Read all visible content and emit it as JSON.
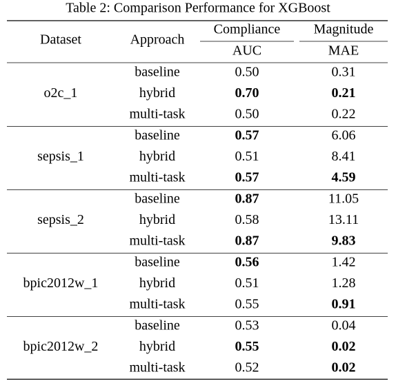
{
  "title": "Table 2: Comparison Performance for XGBoost",
  "header": {
    "dataset": "Dataset",
    "approach": "Approach",
    "compliance": "Compliance",
    "auc": "AUC",
    "magnitude": "Magnitude",
    "mae": "MAE"
  },
  "groups": [
    {
      "dataset": "o2c_1",
      "rows": [
        {
          "approach": "baseline",
          "auc": "0.50",
          "mae": "0.31",
          "auc_bold": false,
          "mae_bold": false
        },
        {
          "approach": "hybrid",
          "auc": "0.70",
          "mae": "0.21",
          "auc_bold": true,
          "mae_bold": true
        },
        {
          "approach": "multi-task",
          "auc": "0.50",
          "mae": "0.22",
          "auc_bold": false,
          "mae_bold": false
        }
      ]
    },
    {
      "dataset": "sepsis_1",
      "rows": [
        {
          "approach": "baseline",
          "auc": "0.57",
          "mae": "6.06",
          "auc_bold": true,
          "mae_bold": false
        },
        {
          "approach": "hybrid",
          "auc": "0.51",
          "mae": "8.41",
          "auc_bold": false,
          "mae_bold": false
        },
        {
          "approach": "multi-task",
          "auc": "0.57",
          "mae": "4.59",
          "auc_bold": true,
          "mae_bold": true
        }
      ]
    },
    {
      "dataset": "sepsis_2",
      "rows": [
        {
          "approach": "baseline",
          "auc": "0.87",
          "mae": "11.05",
          "auc_bold": true,
          "mae_bold": false
        },
        {
          "approach": "hybrid",
          "auc": "0.58",
          "mae": "13.11",
          "auc_bold": false,
          "mae_bold": false
        },
        {
          "approach": "multi-task",
          "auc": "0.87",
          "mae": "9.83",
          "auc_bold": true,
          "mae_bold": true
        }
      ]
    },
    {
      "dataset": "bpic2012w_1",
      "rows": [
        {
          "approach": "baseline",
          "auc": "0.56",
          "mae": "1.42",
          "auc_bold": true,
          "mae_bold": false
        },
        {
          "approach": "hybrid",
          "auc": "0.51",
          "mae": "1.28",
          "auc_bold": false,
          "mae_bold": false
        },
        {
          "approach": "multi-task",
          "auc": "0.55",
          "mae": "0.91",
          "auc_bold": false,
          "mae_bold": true
        }
      ]
    },
    {
      "dataset": "bpic2012w_2",
      "rows": [
        {
          "approach": "baseline",
          "auc": "0.53",
          "mae": "0.04",
          "auc_bold": false,
          "mae_bold": false
        },
        {
          "approach": "hybrid",
          "auc": "0.55",
          "mae": "0.02",
          "auc_bold": true,
          "mae_bold": true
        },
        {
          "approach": "multi-task",
          "auc": "0.52",
          "mae": "0.02",
          "auc_bold": false,
          "mae_bold": true
        }
      ]
    }
  ]
}
